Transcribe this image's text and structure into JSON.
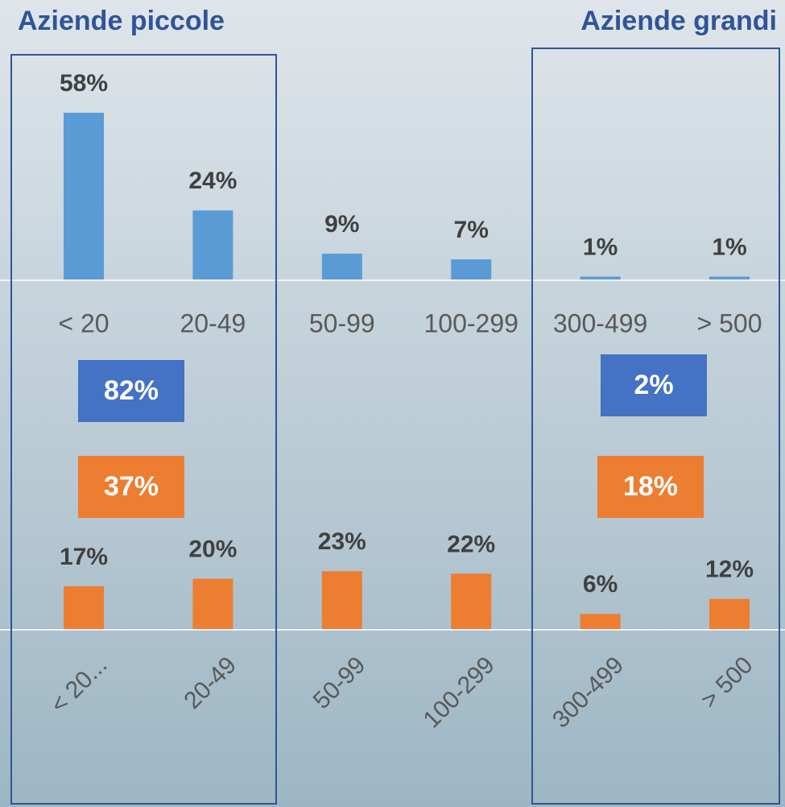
{
  "chart_data": [
    {
      "type": "bar",
      "categories": [
        "< 20",
        "20-49",
        "50-99",
        "100-299",
        "300-499",
        "> 500"
      ],
      "values": [
        58,
        24,
        9,
        7,
        1,
        1
      ],
      "value_labels": [
        "58%",
        "24%",
        "9%",
        "7%",
        "1%",
        "1%"
      ],
      "color": "#5b9bd5"
    },
    {
      "type": "bar",
      "categories": [
        "< 20...",
        "20-49",
        "50-99",
        "100-299",
        "300-499",
        "> 500"
      ],
      "values": [
        17,
        20,
        23,
        22,
        6,
        12
      ],
      "value_labels": [
        "17%",
        "20%",
        "23%",
        "22%",
        "6%",
        "12%"
      ],
      "color": "#ed7d31"
    }
  ],
  "groups": [
    {
      "title": "Aziende piccole",
      "values": [
        82,
        37
      ],
      "value_labels": [
        "82%",
        "37%"
      ],
      "colors": [
        "#4472c4",
        "#ed7d31"
      ]
    },
    {
      "title": "Aziende grandi",
      "values": [
        2,
        18
      ],
      "value_labels": [
        "2%",
        "18%"
      ],
      "colors": [
        "#4472c4",
        "#ed7d31"
      ]
    }
  ]
}
